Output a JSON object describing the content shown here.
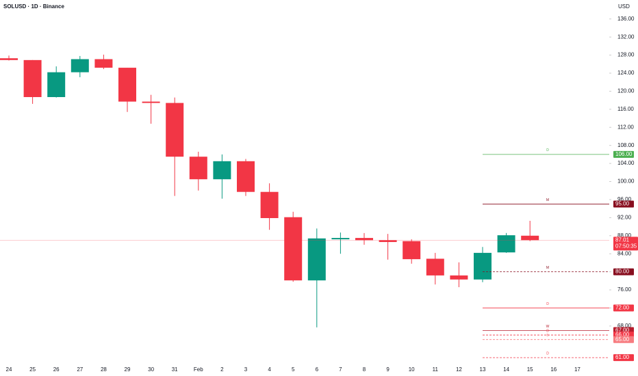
{
  "chart_data": {
    "type": "candlestick",
    "title": "SOLUSD · 1D · Binance",
    "currency": "USD",
    "categories": [
      "24",
      "25",
      "26",
      "27",
      "28",
      "29",
      "30",
      "31",
      "Feb",
      "2",
      "3",
      "4",
      "5",
      "6",
      "7",
      "8",
      "9",
      "10",
      "11",
      "12",
      "13",
      "14",
      "15",
      "16",
      "17"
    ],
    "open": [
      127.3,
      126.9,
      118.7,
      124.2,
      127.1,
      125.2,
      117.7,
      117.4,
      105.5,
      100.5,
      104.5,
      97.7,
      92.1,
      78.1,
      87.2,
      87.5,
      87.0,
      86.8,
      82.9,
      79.2,
      78.3,
      84.3,
      88.0,
      null,
      null
    ],
    "high": [
      127.9,
      126.9,
      125.5,
      127.8,
      128.1,
      125.2,
      119.2,
      118.6,
      106.6,
      106.0,
      105.0,
      99.6,
      93.3,
      89.6,
      88.7,
      88.6,
      88.4,
      87.2,
      84.2,
      82.1,
      85.5,
      88.6,
      91.3,
      null,
      null
    ],
    "low": [
      126.8,
      117.2,
      118.6,
      123.1,
      124.9,
      115.4,
      112.8,
      96.8,
      98.0,
      96.2,
      96.8,
      89.3,
      77.8,
      67.7,
      84.0,
      86.0,
      82.7,
      81.8,
      77.2,
      76.6,
      77.7,
      84.2,
      86.8,
      null,
      null
    ],
    "close": [
      126.9,
      118.7,
      124.2,
      127.1,
      125.2,
      117.7,
      117.4,
      105.5,
      100.5,
      104.5,
      97.7,
      91.9,
      78.1,
      87.4,
      87.5,
      87.0,
      86.6,
      82.8,
      79.2,
      78.3,
      84.2,
      88.1,
      87.01,
      null,
      null
    ],
    "up_color": "#089981",
    "down_color": "#f23645",
    "ylim": [
      59.2,
      140.2
    ],
    "yticks": [
      {
        "value": 68,
        "label": "68.00"
      },
      {
        "value": 72,
        "label": "72.00"
      },
      {
        "value": 76,
        "label": "76.00"
      },
      {
        "value": 80,
        "label": "80.00"
      },
      {
        "value": 84,
        "label": "84.00"
      },
      {
        "value": 88,
        "label": "88.00"
      },
      {
        "value": 92,
        "label": "92.00"
      },
      {
        "value": 96,
        "label": "96.00"
      },
      {
        "value": 100,
        "label": "100.00"
      },
      {
        "value": 104,
        "label": "104.00"
      },
      {
        "value": 108,
        "label": "108.00"
      },
      {
        "value": 112,
        "label": "112.00"
      },
      {
        "value": 116,
        "label": "116.00"
      },
      {
        "value": 120,
        "label": "120.00"
      },
      {
        "value": 124,
        "label": "124.00"
      },
      {
        "value": 128,
        "label": "128.00"
      },
      {
        "value": 132,
        "label": "132.00"
      },
      {
        "value": 136,
        "label": "136.00"
      }
    ],
    "levels": [
      {
        "value": 106,
        "label": "106.00",
        "tag": "D",
        "color": "#4caf50",
        "dashed": false
      },
      {
        "value": 95,
        "label": "95.00",
        "tag": "M",
        "color": "#880e1f",
        "dashed": false
      },
      {
        "value": 80,
        "label": "80.00",
        "tag": "M",
        "color": "#880e1f",
        "dashed": true
      },
      {
        "value": 72,
        "label": "72.00",
        "tag": "D",
        "color": "#f23645",
        "dashed": false
      },
      {
        "value": 67,
        "label": "67.00",
        "tag": "W",
        "color": "#b71c2c",
        "dashed": false
      },
      {
        "value": 66,
        "label": "66.00",
        "tag": "D",
        "color": "#f23645",
        "dashed": true
      },
      {
        "value": 65,
        "label": "65.00",
        "tag": "B",
        "color": "#f77c80",
        "dashed": true
      },
      {
        "value": 61,
        "label": "61.00",
        "tag": "D",
        "color": "#f23645",
        "dashed": true
      }
    ],
    "last": {
      "value": 87.01,
      "label": "87.01",
      "countdown": "07:50:35",
      "color": "#f23645"
    }
  }
}
